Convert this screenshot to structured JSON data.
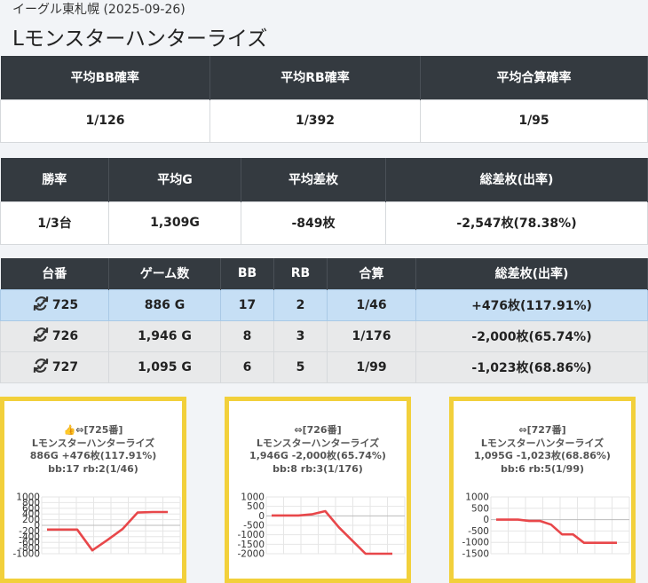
{
  "store": "イーグル東札幌 (2025-09-26)",
  "title": "Lモンスターハンターライズ",
  "summary1": {
    "headers": [
      "平均BB確率",
      "平均RB確率",
      "平均合算確率"
    ],
    "values": [
      "1/126",
      "1/392",
      "1/95"
    ]
  },
  "summary2": {
    "headers": [
      "勝率",
      "平均G",
      "平均差枚",
      "総差枚(出率)"
    ],
    "values": [
      "1/3台",
      "1,309G",
      "-849枚",
      "-2,547枚(78.38%)"
    ]
  },
  "units_table": {
    "headers": [
      "台番",
      "ゲーム数",
      "BB",
      "RB",
      "合算",
      "総差枚(出率)"
    ],
    "rows": [
      {
        "unit": "725",
        "games": "886 G",
        "bb": "17",
        "rb": "2",
        "total": "1/46",
        "diff": "+476枚(117.91%)"
      },
      {
        "unit": "726",
        "games": "1,946 G",
        "bb": "8",
        "rb": "3",
        "total": "1/176",
        "diff": "-2,000枚(65.74%)"
      },
      {
        "unit": "727",
        "games": "1,095 G",
        "bb": "6",
        "rb": "5",
        "total": "1/99",
        "diff": "-1,023枚(68.86%)"
      }
    ]
  },
  "cards": [
    {
      "line1": "👍⇔[725番]",
      "line2": "Lモンスターハンターライズ",
      "line3": "886G +476枚(117.91%)",
      "line4": "bb:17 rb:2(1/46)"
    },
    {
      "line1": "⇔[726番]",
      "line2": "Lモンスターハンターライズ",
      "line3": "1,946G -2,000枚(65.74%)",
      "line4": "bb:8 rb:3(1/176)"
    },
    {
      "line1": "⇔[727番]",
      "line2": "Lモンスターハンターライズ",
      "line3": "1,095G -1,023枚(68.86%)",
      "line4": "bb:6 rb:5(1/99)"
    }
  ],
  "chart_data": [
    {
      "type": "line",
      "ylim": [
        -1000,
        1000
      ],
      "yticks": [
        "1000",
        "800",
        "600",
        "400",
        "200",
        "0",
        "-200",
        "-400",
        "-600",
        "-800",
        "-1000"
      ],
      "tickvals": [
        1000,
        800,
        600,
        400,
        200,
        0,
        -200,
        -400,
        -600,
        -800,
        -1000
      ],
      "values": [
        -150,
        -150,
        -150,
        -880,
        -520,
        -130,
        450,
        470,
        470
      ],
      "color": "#e8474a"
    },
    {
      "type": "line",
      "ylim": [
        -2000,
        1000
      ],
      "yticks": [
        "1000",
        "500",
        "0",
        "-500",
        "-1000",
        "-1500",
        "-2000"
      ],
      "tickvals": [
        1000,
        500,
        0,
        -500,
        -1000,
        -1500,
        -2000
      ],
      "values": [
        20,
        20,
        20,
        80,
        250,
        -600,
        -1300,
        -2000,
        -2000,
        -2000
      ],
      "color": "#e8474a"
    },
    {
      "type": "line",
      "ylim": [
        -1500,
        1000
      ],
      "yticks": [
        "1000",
        "500",
        "0",
        "-500",
        "-1000",
        "-1500"
      ],
      "tickvals": [
        1000,
        500,
        0,
        -500,
        -1000,
        -1500
      ],
      "values": [
        0,
        0,
        0,
        -60,
        -60,
        -220,
        -650,
        -650,
        -1020,
        -1020,
        -1020,
        -1020
      ],
      "color": "#e8474a"
    }
  ]
}
